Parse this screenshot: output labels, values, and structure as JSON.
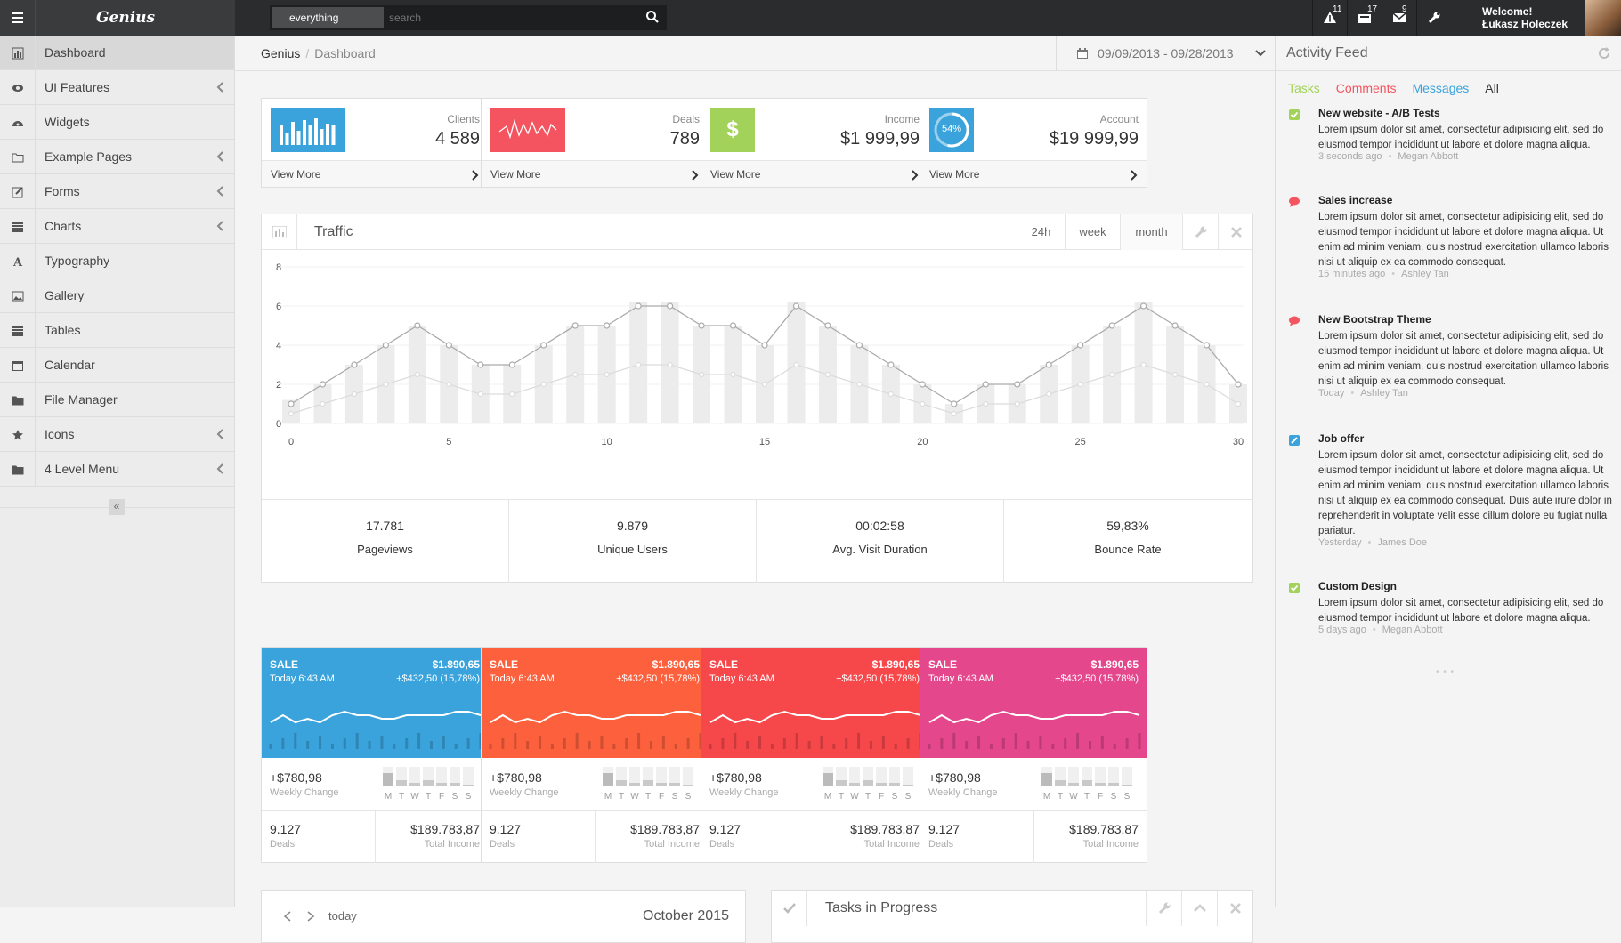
{
  "app": {
    "logo": "Genius"
  },
  "search": {
    "scope": "everything",
    "placeholder": "search"
  },
  "topbar": {
    "alerts_count": "11",
    "inbox_count": "17",
    "messages_count": "9",
    "welcome": "Welcome!",
    "user": "Łukasz Holeczek"
  },
  "sidebar": {
    "items": [
      {
        "label": "Dashboard"
      },
      {
        "label": "UI Features"
      },
      {
        "label": "Widgets"
      },
      {
        "label": "Example Pages"
      },
      {
        "label": "Forms"
      },
      {
        "label": "Charts"
      },
      {
        "label": "Typography"
      },
      {
        "label": "Gallery"
      },
      {
        "label": "Tables"
      },
      {
        "label": "Calendar"
      },
      {
        "label": "File Manager"
      },
      {
        "label": "Icons"
      },
      {
        "label": "4 Level Menu"
      }
    ],
    "collapse_label": "«"
  },
  "breadcrumb": {
    "root": "Genius",
    "sep": "/",
    "current": "Dashboard"
  },
  "daterange": "09/09/2013 - 09/28/2013",
  "stats": [
    {
      "label": "Clients",
      "value": "4 589",
      "footer": "View More",
      "color": "#3aa3dc"
    },
    {
      "label": "Deals",
      "value": "789",
      "footer": "View More",
      "color": "#f3545f"
    },
    {
      "label": "Income",
      "value": "$1 999,99",
      "footer": "View More",
      "color": "#a2d25a",
      "icon_text": "$"
    },
    {
      "label": "Account",
      "value": "$19 999,99",
      "footer": "View More",
      "color": "#3aa3dc",
      "icon_text": "54%"
    }
  ],
  "traffic": {
    "title": "Traffic",
    "buttons": [
      "24h",
      "week",
      "month"
    ],
    "metrics": [
      {
        "value": "17.781",
        "label": "Pageviews"
      },
      {
        "value": "9.879",
        "label": "Unique Users"
      },
      {
        "value": "00:02:58",
        "label": "Avg. Visit Duration"
      },
      {
        "value": "59,83%",
        "label": "Bounce Rate"
      }
    ]
  },
  "chart_data": {
    "type": "bar",
    "title": "Traffic",
    "x": [
      0,
      1,
      2,
      3,
      4,
      5,
      6,
      7,
      8,
      9,
      10,
      11,
      12,
      13,
      14,
      15,
      16,
      17,
      18,
      19,
      20,
      21,
      22,
      23,
      24,
      25,
      26,
      27,
      28,
      29,
      30
    ],
    "series": [
      {
        "name": "bars",
        "type": "bar",
        "values": [
          1.2,
          2,
          3,
          4,
          5,
          4,
          3,
          3,
          4,
          5,
          5,
          6.2,
          6.2,
          5,
          5,
          4,
          6.2,
          5,
          4,
          3,
          2,
          1,
          2,
          2,
          3,
          4,
          5,
          6.2,
          5,
          4,
          2
        ]
      },
      {
        "name": "line",
        "type": "line",
        "values": [
          1,
          2,
          3,
          4,
          5,
          4,
          3,
          3,
          4,
          5,
          5,
          6,
          6,
          5,
          5,
          4,
          6,
          5,
          4,
          3,
          2,
          1,
          2,
          2,
          3,
          4,
          5,
          6,
          5,
          4,
          2
        ]
      },
      {
        "name": "line2",
        "type": "line",
        "values": [
          0.5,
          1,
          1.5,
          2,
          2.5,
          2,
          1.5,
          1.5,
          2,
          2.5,
          2.5,
          3,
          3,
          2.5,
          2.5,
          2,
          3,
          2.5,
          2,
          1.5,
          1,
          0.5,
          1,
          1,
          1.5,
          2,
          2.5,
          3,
          2.5,
          2,
          1
        ]
      }
    ],
    "ylim": [
      0,
      8
    ],
    "yticks": [
      0,
      2,
      4,
      6,
      8
    ],
    "xticks": [
      0,
      5,
      10,
      15,
      20,
      25,
      30
    ]
  },
  "sales": [
    {
      "title": "SALE",
      "amount": "$1.890,65",
      "time": "Today 6:43 AM",
      "change": "+$432,50 (15,78%)",
      "weekly": "+$780,98",
      "weekly_label": "Weekly Change",
      "deals": "9.127",
      "deals_label": "Deals",
      "income": "$189.783,87",
      "income_label": "Total Income",
      "color": "#3aa3dc",
      "days": [
        "M",
        "T",
        "W",
        "T",
        "F",
        "S",
        "S"
      ],
      "spark": [
        4,
        6,
        4,
        5,
        4,
        6,
        7,
        6,
        6,
        5,
        5,
        6,
        6,
        6,
        6,
        7,
        7,
        6
      ],
      "fill": [
        0.7,
        0.3,
        0.2,
        0.3,
        0.2,
        0.2,
        0.1
      ]
    },
    {
      "title": "SALE",
      "amount": "$1.890,65",
      "time": "Today 6:43 AM",
      "change": "+$432,50 (15,78%)",
      "weekly": "+$780,98",
      "weekly_label": "Weekly Change",
      "deals": "9.127",
      "deals_label": "Deals",
      "income": "$189.783,87",
      "income_label": "Total Income",
      "color": "#fc603c",
      "days": [
        "M",
        "T",
        "W",
        "T",
        "F",
        "S",
        "S"
      ],
      "spark": [
        4,
        6,
        4,
        5,
        4,
        6,
        7,
        6,
        6,
        5,
        5,
        6,
        6,
        6,
        6,
        7,
        7,
        6
      ],
      "fill": [
        0.7,
        0.3,
        0.2,
        0.3,
        0.2,
        0.2,
        0.1
      ]
    },
    {
      "title": "SALE",
      "amount": "$1.890,65",
      "time": "Today 6:43 AM",
      "change": "+$432,50 (15,78%)",
      "weekly": "+$780,98",
      "weekly_label": "Weekly Change",
      "deals": "9.127",
      "deals_label": "Deals",
      "income": "$189.783,87",
      "income_label": "Total Income",
      "color": "#f6474b",
      "days": [
        "M",
        "T",
        "W",
        "T",
        "F",
        "S",
        "S"
      ],
      "spark": [
        4,
        6,
        4,
        5,
        4,
        6,
        7,
        6,
        6,
        5,
        5,
        6,
        6,
        6,
        6,
        7,
        7,
        6
      ],
      "fill": [
        0.7,
        0.3,
        0.2,
        0.3,
        0.2,
        0.2,
        0.1
      ]
    },
    {
      "title": "SALE",
      "amount": "$1.890,65",
      "time": "Today 6:43 AM",
      "change": "+$432,50 (15,78%)",
      "weekly": "+$780,98",
      "weekly_label": "Weekly Change",
      "deals": "9.127",
      "deals_label": "Deals",
      "income": "$189.783,87",
      "income_label": "Total Income",
      "color": "#e4478c",
      "days": [
        "M",
        "T",
        "W",
        "T",
        "F",
        "S",
        "S"
      ],
      "spark": [
        4,
        6,
        4,
        5,
        4,
        6,
        7,
        6,
        6,
        5,
        5,
        6,
        6,
        6,
        6,
        7,
        7,
        6
      ],
      "fill": [
        0.7,
        0.3,
        0.2,
        0.3,
        0.2,
        0.2,
        0.1
      ]
    }
  ],
  "calendar": {
    "today": "today",
    "month": "October 2015"
  },
  "tasks": {
    "title": "Tasks in Progress"
  },
  "feed": {
    "title": "Activity Feed",
    "tabs": [
      {
        "label": "Tasks",
        "color": "#a2d25a"
      },
      {
        "label": "Comments",
        "color": "#f3545f"
      },
      {
        "label": "Messages",
        "color": "#3aa3dc"
      },
      {
        "label": "All",
        "color": "#333"
      }
    ],
    "items": [
      {
        "icon": "check-icon",
        "color": "#a2d25a",
        "title": "New website - A/B Tests",
        "body": "Lorem ipsum dolor sit amet, consectetur adipisicing elit, sed do eiusmod tempor incididunt ut labore et dolore magna aliqua.",
        "time": "3 seconds ago",
        "author": "Megan Abbott"
      },
      {
        "icon": "comment-icon",
        "color": "#f3545f",
        "title": "Sales increase",
        "body": "Lorem ipsum dolor sit amet, consectetur adipisicing elit, sed do eiusmod tempor incididunt ut labore et dolore magna aliqua. Ut enim ad minim veniam, quis nostrud exercitation ullamco laboris nisi ut aliquip ex ea commodo consequat.",
        "time": "15 minutes ago",
        "author": "Ashley Tan"
      },
      {
        "icon": "comment-icon",
        "color": "#f3545f",
        "title": "New Bootstrap Theme",
        "body": "Lorem ipsum dolor sit amet, consectetur adipisicing elit, sed do eiusmod tempor incididunt ut labore et dolore magna aliqua. Ut enim ad minim veniam, quis nostrud exercitation ullamco laboris nisi ut aliquip ex ea commodo consequat.",
        "time": "Today",
        "author": "Ashley Tan"
      },
      {
        "icon": "edit-icon",
        "color": "#3aa3dc",
        "title": "Job offer",
        "body": "Lorem ipsum dolor sit amet, consectetur adipisicing elit, sed do eiusmod tempor incididunt ut labore et dolore magna aliqua. Ut enim ad minim veniam, quis nostrud exercitation ullamco laboris nisi ut aliquip ex ea commodo consequat. Duis aute irure dolor in reprehenderit in voluptate velit esse cillum dolore eu fugiat nulla pariatur.",
        "time": "Yesterday",
        "author": "James Doe"
      },
      {
        "icon": "check-icon",
        "color": "#a2d25a",
        "title": "Custom Design",
        "body": "Lorem ipsum dolor sit amet, consectetur adipisicing elit, sed do eiusmod tempor incididunt ut labore et dolore magna aliqua.",
        "time": "5 days ago",
        "author": "Megan Abbott"
      }
    ],
    "more": "• • •"
  }
}
